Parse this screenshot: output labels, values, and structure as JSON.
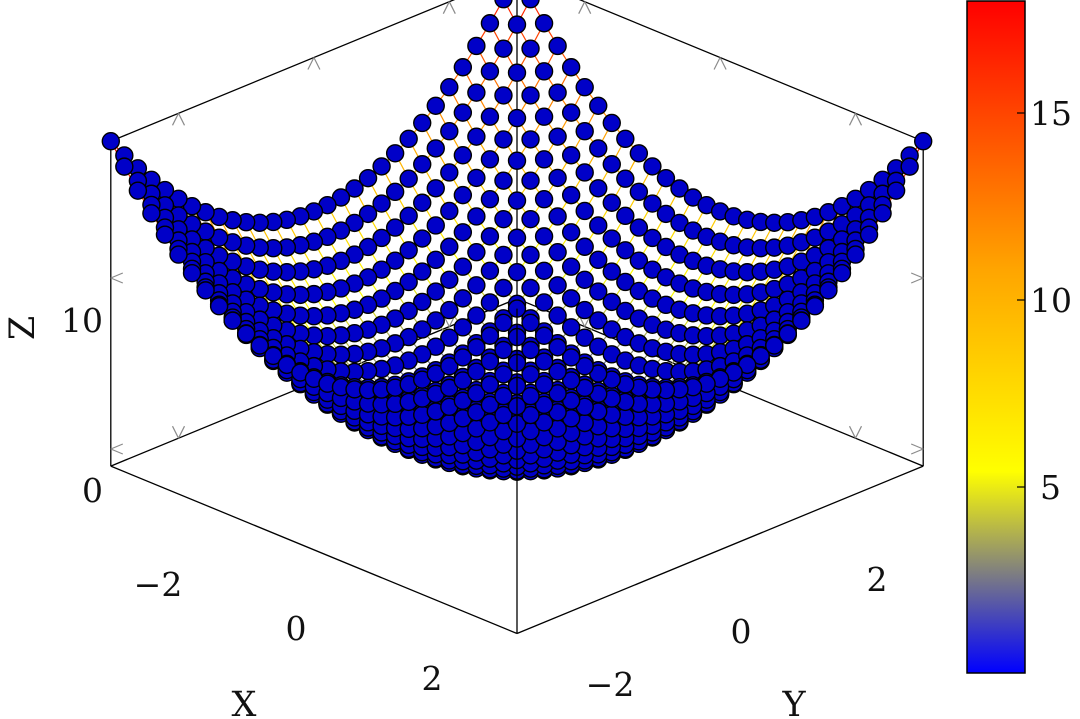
{
  "chart_data": {
    "type": "surface",
    "function": "z = x^2 + y^2",
    "title": "",
    "xlabel": "X",
    "ylabel": "Y",
    "zlabel": "Z",
    "x": [
      -3,
      -2.8,
      -2.6,
      -2.4,
      -2.2,
      -2,
      -1.8,
      -1.6,
      -1.4,
      -1.2,
      -1,
      -0.8,
      -0.6,
      -0.4,
      -0.2,
      0,
      0.2,
      0.4,
      0.6,
      0.8,
      1,
      1.2,
      1.4,
      1.6,
      1.8,
      2,
      2.2,
      2.4,
      2.6,
      2.8,
      3
    ],
    "y": [
      -3,
      -2.8,
      -2.6,
      -2.4,
      -2.2,
      -2,
      -1.8,
      -1.6,
      -1.4,
      -1.2,
      -1,
      -0.8,
      -0.6,
      -0.4,
      -0.2,
      0,
      0.2,
      0.4,
      0.6,
      0.8,
      1,
      1.2,
      1.4,
      1.6,
      1.8,
      2,
      2.2,
      2.4,
      2.6,
      2.8,
      3
    ],
    "xlim": [
      -3,
      3
    ],
    "ylim": [
      -3,
      3
    ],
    "zlim": [
      -1,
      18
    ],
    "xticks": [
      -2,
      0,
      2
    ],
    "yticks": [
      -2,
      0,
      2
    ],
    "zticks": [
      0,
      10
    ],
    "xtick_labels": [
      "−2",
      "0",
      "2"
    ],
    "ytick_labels": [
      "−2",
      "0",
      "2"
    ],
    "ztick_labels": [
      "0",
      "10"
    ],
    "marker_color": "#0000c8",
    "marker_edge_color": "#000000",
    "grid": false,
    "colorbar": {
      "range": [
        0,
        18
      ],
      "ticks": [
        5,
        10,
        15
      ],
      "tick_labels": [
        "5",
        "10",
        "15"
      ],
      "colormap": [
        "#0000ff",
        "#ffff00",
        "#ffa500",
        "#ff0000"
      ]
    }
  }
}
